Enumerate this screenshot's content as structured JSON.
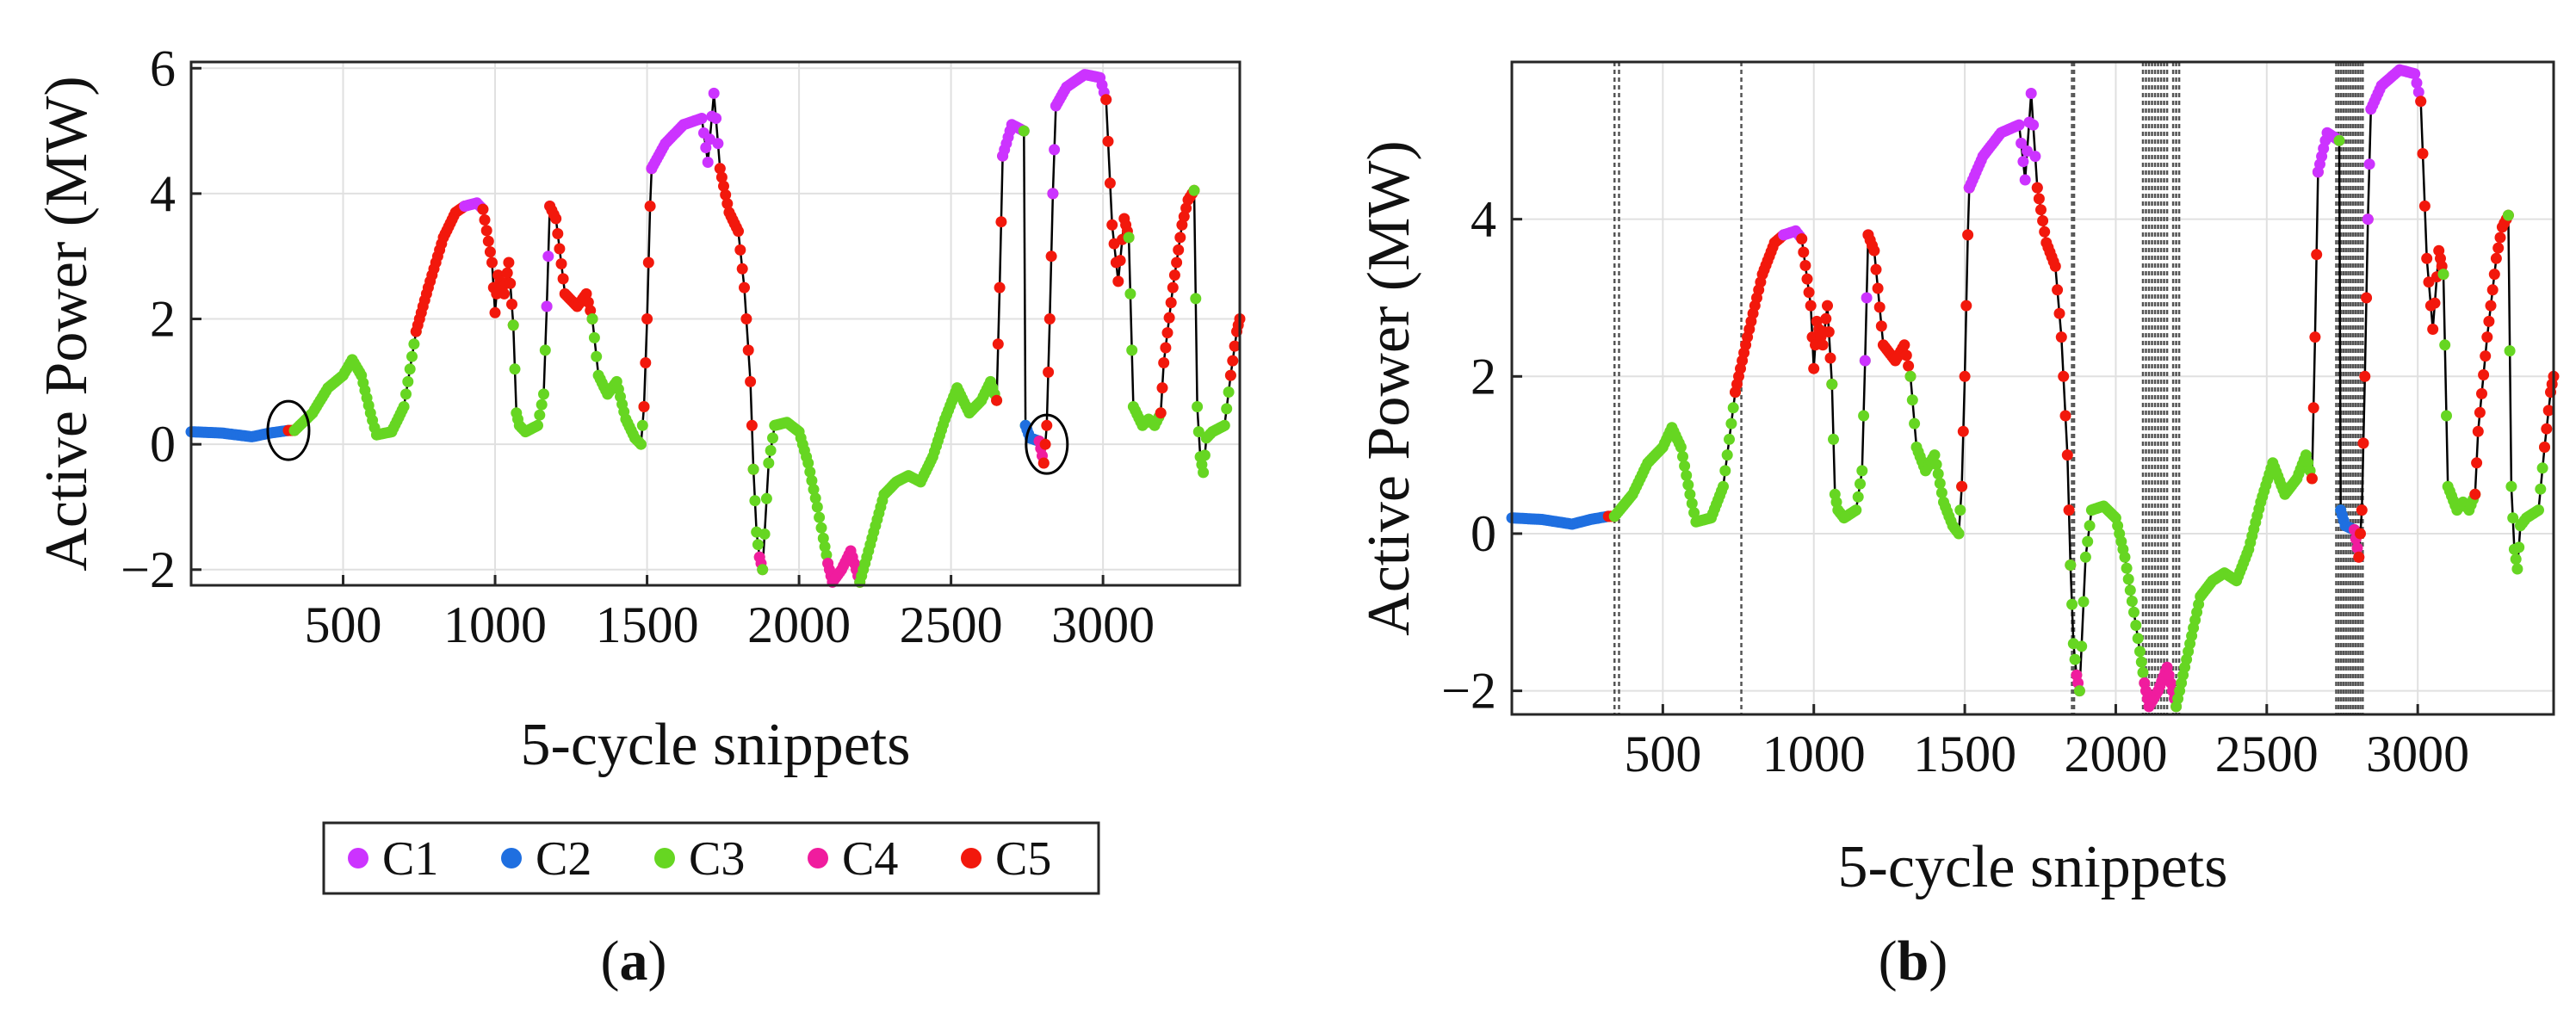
{
  "chart_data": [
    {
      "panel": "a",
      "type": "scatter",
      "xlabel": "5-cycle snippets",
      "ylabel": "Active Power (MW)",
      "xlim": [
        0,
        3450
      ],
      "ylim": [
        -2.25,
        6.1
      ],
      "xticks": [
        500,
        1000,
        1500,
        2000,
        2500,
        3000
      ],
      "xtick_labels": [
        "500",
        "1000",
        "1500",
        "2000",
        "2500",
        "3000"
      ],
      "yticks": [
        -2,
        0,
        2,
        4,
        6
      ],
      "ytick_labels": [
        "−2",
        "0",
        "2",
        "4",
        "6"
      ],
      "grid": true,
      "caption_label": "a",
      "annotations": [
        {
          "shape": "ellipse",
          "x": 320,
          "y": 0.22
        },
        {
          "shape": "ellipse",
          "x": 2815,
          "y": 0.0
        }
      ]
    },
    {
      "panel": "b",
      "type": "scatter",
      "xlabel": "5-cycle snippets",
      "ylabel": "Active Power (MW)",
      "xlim": [
        0,
        3450
      ],
      "ylim": [
        -2.3,
        6.0
      ],
      "xticks": [
        500,
        1000,
        1500,
        2000,
        2500,
        3000
      ],
      "xtick_labels": [
        "500",
        "1000",
        "1500",
        "2000",
        "2500",
        "3000"
      ],
      "yticks": [
        -2,
        0,
        2,
        4
      ],
      "ytick_labels": [
        "−2",
        "0",
        "2",
        "4"
      ],
      "grid": true,
      "caption_label": "b",
      "change_points": [
        340,
        355,
        760,
        1855,
        1862,
        2090,
        2100,
        2110,
        2120,
        2130,
        2140,
        2150,
        2160,
        2170,
        2190,
        2200,
        2210,
        2730,
        2738,
        2746,
        2754,
        2762,
        2770,
        2778,
        2786,
        2794,
        2802,
        2810,
        2818
      ]
    }
  ],
  "series_trace": {
    "segments": [
      {
        "cluster": "C2",
        "points": [
          [
            0,
            0.2
          ],
          [
            100,
            0.18
          ],
          [
            150,
            0.15
          ],
          [
            200,
            0.12
          ],
          [
            260,
            0.18
          ],
          [
            320,
            0.22
          ]
        ]
      },
      {
        "cluster": "C5",
        "points": [
          [
            320,
            0.22
          ],
          [
            340,
            0.22
          ]
        ]
      },
      {
        "cluster": "C3",
        "points": [
          [
            340,
            0.22
          ],
          [
            400,
            0.5
          ],
          [
            450,
            0.9
          ],
          [
            500,
            1.1
          ],
          [
            530,
            1.35
          ],
          [
            560,
            1.1
          ],
          [
            590,
            0.5
          ],
          [
            610,
            0.15
          ],
          [
            660,
            0.2
          ],
          [
            700,
            0.6
          ],
          [
            720,
            1.2
          ],
          [
            740,
            1.8
          ]
        ]
      },
      {
        "cluster": "C5",
        "points": [
          [
            740,
            1.8
          ],
          [
            780,
            2.5
          ],
          [
            830,
            3.3
          ],
          [
            870,
            3.7
          ],
          [
            900,
            3.8
          ]
        ]
      },
      {
        "cluster": "C1",
        "points": [
          [
            900,
            3.8
          ],
          [
            940,
            3.85
          ],
          [
            960,
            3.75
          ]
        ]
      },
      {
        "cluster": "C5",
        "points": [
          [
            960,
            3.75
          ],
          [
            990,
            2.9
          ],
          [
            1000,
            2.1
          ],
          [
            1010,
            2.7
          ],
          [
            1030,
            2.4
          ],
          [
            1045,
            2.9
          ],
          [
            1060,
            1.9
          ]
        ]
      },
      {
        "cluster": "C3",
        "points": [
          [
            1060,
            1.9
          ],
          [
            1070,
            0.5
          ],
          [
            1080,
            0.3
          ],
          [
            1100,
            0.2
          ],
          [
            1140,
            0.3
          ],
          [
            1160,
            0.8
          ],
          [
            1170,
            2.2
          ]
        ]
      },
      {
        "cluster": "C1",
        "points": [
          [
            1170,
            2.2
          ],
          [
            1180,
            3.8
          ]
        ]
      },
      {
        "cluster": "C5",
        "points": [
          [
            1180,
            3.8
          ],
          [
            1200,
            3.6
          ],
          [
            1230,
            2.4
          ],
          [
            1270,
            2.2
          ],
          [
            1300,
            2.4
          ],
          [
            1320,
            2.0
          ]
        ]
      },
      {
        "cluster": "C3",
        "points": [
          [
            1320,
            2.0
          ],
          [
            1340,
            1.1
          ],
          [
            1370,
            0.8
          ],
          [
            1400,
            1.0
          ],
          [
            1430,
            0.4
          ],
          [
            1460,
            0.1
          ],
          [
            1480,
            0.0
          ],
          [
            1490,
            0.6
          ]
        ]
      },
      {
        "cluster": "C5",
        "points": [
          [
            1490,
            0.6
          ],
          [
            1500,
            2.0
          ],
          [
            1510,
            3.8
          ],
          [
            1515,
            4.4
          ]
        ]
      },
      {
        "cluster": "C1",
        "points": [
          [
            1515,
            4.4
          ],
          [
            1560,
            4.8
          ],
          [
            1620,
            5.1
          ],
          [
            1680,
            5.2
          ],
          [
            1700,
            4.5
          ],
          [
            1720,
            5.6
          ],
          [
            1740,
            4.4
          ]
        ]
      },
      {
        "cluster": "C5",
        "points": [
          [
            1740,
            4.4
          ],
          [
            1770,
            3.7
          ],
          [
            1800,
            3.4
          ],
          [
            1820,
            2.5
          ],
          [
            1840,
            1.0
          ],
          [
            1850,
            -0.4
          ]
        ]
      },
      {
        "cluster": "C3",
        "points": [
          [
            1850,
            -0.4
          ],
          [
            1860,
            -1.4
          ],
          [
            1870,
            -1.8
          ]
        ]
      },
      {
        "cluster": "C4",
        "points": [
          [
            1870,
            -1.8
          ],
          [
            1880,
            -2.0
          ]
        ]
      },
      {
        "cluster": "C3",
        "points": [
          [
            1880,
            -2.0
          ],
          [
            1900,
            -0.3
          ],
          [
            1920,
            0.3
          ],
          [
            1960,
            0.35
          ],
          [
            2000,
            0.2
          ],
          [
            2030,
            -0.3
          ],
          [
            2060,
            -1.0
          ],
          [
            2080,
            -1.5
          ],
          [
            2095,
            -1.9
          ]
        ]
      },
      {
        "cluster": "C4",
        "points": [
          [
            2095,
            -1.9
          ],
          [
            2110,
            -2.2
          ],
          [
            2140,
            -2.0
          ],
          [
            2170,
            -1.7
          ],
          [
            2200,
            -2.2
          ]
        ]
      },
      {
        "cluster": "C3",
        "points": [
          [
            2200,
            -2.2
          ],
          [
            2240,
            -1.5
          ],
          [
            2280,
            -0.8
          ],
          [
            2320,
            -0.6
          ],
          [
            2360,
            -0.5
          ],
          [
            2400,
            -0.6
          ],
          [
            2440,
            -0.2
          ],
          [
            2480,
            0.4
          ],
          [
            2520,
            0.9
          ],
          [
            2560,
            0.5
          ],
          [
            2600,
            0.7
          ],
          [
            2630,
            1.0
          ],
          [
            2650,
            0.7
          ]
        ]
      },
      {
        "cluster": "C5",
        "points": [
          [
            2650,
            0.7
          ],
          [
            2660,
            2.5
          ],
          [
            2670,
            4.6
          ]
        ]
      },
      {
        "cluster": "C1",
        "points": [
          [
            2670,
            4.6
          ],
          [
            2700,
            5.1
          ],
          [
            2740,
            5.0
          ]
        ]
      },
      {
        "cluster": "C3",
        "points": [
          [
            2740,
            5.0
          ],
          [
            2745,
            0.3
          ]
        ]
      },
      {
        "cluster": "C2",
        "points": [
          [
            2745,
            0.3
          ],
          [
            2760,
            0.1
          ],
          [
            2790,
            0.05
          ]
        ]
      },
      {
        "cluster": "C4",
        "points": [
          [
            2790,
            0.05
          ],
          [
            2805,
            -0.3
          ]
        ]
      },
      {
        "cluster": "C5",
        "points": [
          [
            2805,
            -0.3
          ],
          [
            2815,
            0.3
          ],
          [
            2825,
            2.0
          ],
          [
            2835,
            4.0
          ]
        ]
      },
      {
        "cluster": "C1",
        "points": [
          [
            2835,
            4.0
          ],
          [
            2845,
            5.4
          ],
          [
            2880,
            5.7
          ],
          [
            2940,
            5.9
          ],
          [
            2990,
            5.85
          ],
          [
            3010,
            5.5
          ]
        ]
      },
      {
        "cluster": "C5",
        "points": [
          [
            3010,
            5.5
          ],
          [
            3030,
            3.5
          ],
          [
            3050,
            2.6
          ],
          [
            3070,
            3.6
          ],
          [
            3085,
            3.3
          ]
        ]
      },
      {
        "cluster": "C3",
        "points": [
          [
            3085,
            3.3
          ],
          [
            3100,
            0.6
          ],
          [
            3130,
            0.3
          ],
          [
            3150,
            0.4
          ],
          [
            3170,
            0.3
          ],
          [
            3190,
            0.5
          ]
        ]
      },
      {
        "cluster": "C5",
        "points": [
          [
            3190,
            0.5
          ],
          [
            3200,
            1.3
          ],
          [
            3230,
            2.5
          ],
          [
            3260,
            3.5
          ],
          [
            3280,
            3.9
          ],
          [
            3300,
            4.05
          ]
        ]
      },
      {
        "cluster": "C3",
        "points": [
          [
            3300,
            4.05
          ],
          [
            3310,
            0.6
          ],
          [
            3320,
            -0.2
          ],
          [
            3330,
            -0.45
          ],
          [
            3340,
            0.1
          ],
          [
            3360,
            0.2
          ],
          [
            3400,
            0.3
          ],
          [
            3420,
            1.1
          ]
        ]
      },
      {
        "cluster": "C5",
        "points": [
          [
            3420,
            1.1
          ],
          [
            3440,
            1.8
          ],
          [
            3450,
            2.0
          ]
        ]
      }
    ]
  },
  "legend": {
    "items": [
      {
        "key": "C1",
        "label": "C1",
        "color": "#cc33ff"
      },
      {
        "key": "C2",
        "label": "C2",
        "color": "#1f6fe0"
      },
      {
        "key": "C3",
        "label": "C3",
        "color": "#66d622"
      },
      {
        "key": "C4",
        "label": "C4",
        "color": "#f01c9e"
      },
      {
        "key": "C5",
        "label": "C5",
        "color": "#f2180c"
      }
    ]
  },
  "captions": {
    "a": "a",
    "b": "b"
  },
  "style": {
    "line_color": "#000000",
    "grid_color": "#e0e0e0",
    "axis_color": "#262626",
    "vline_color": "#555555"
  }
}
